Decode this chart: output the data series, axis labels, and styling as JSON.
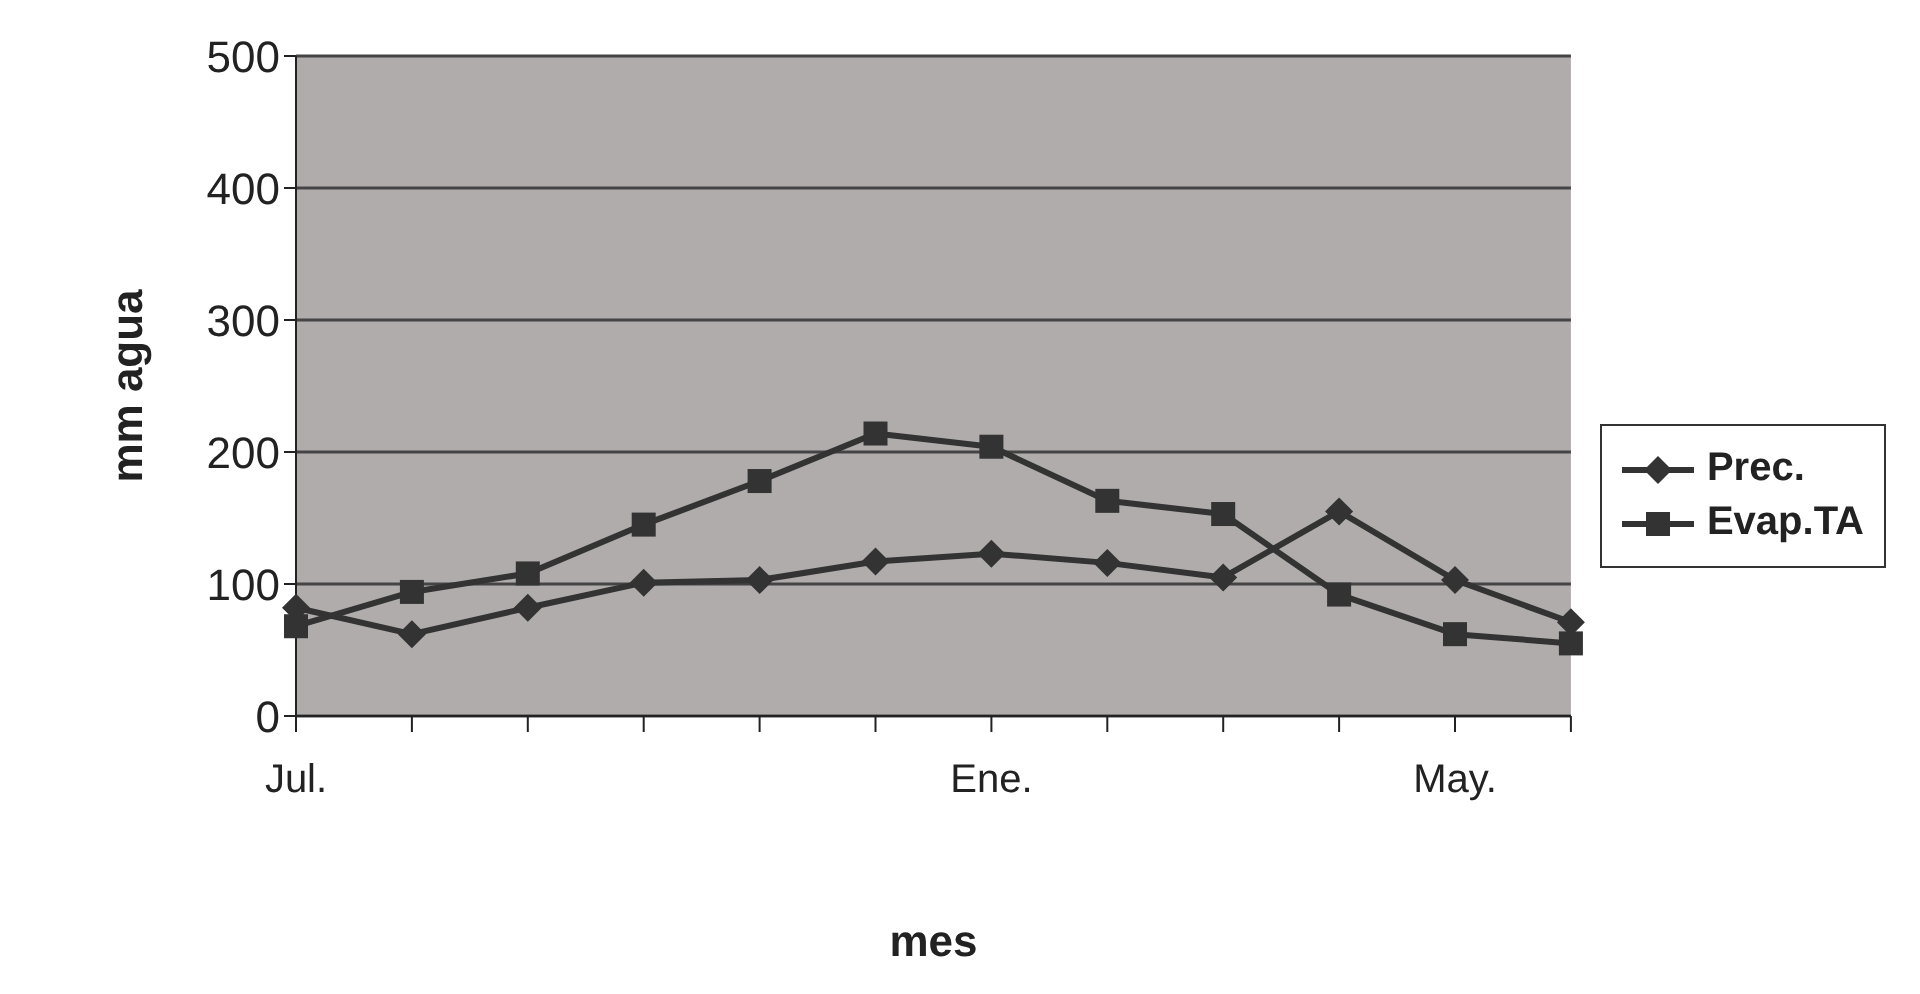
{
  "chart_data": {
    "type": "line",
    "xlabel": "mes",
    "ylabel": "mm agua",
    "categories": [
      "Jul.",
      null,
      null,
      null,
      null,
      null,
      "Ene.",
      null,
      null,
      null,
      "May.",
      null
    ],
    "series": [
      {
        "name": "Prec.",
        "color": "#333333",
        "marker": "diamond",
        "values": [
          82,
          62,
          82,
          101,
          103,
          117,
          123,
          116,
          105,
          155,
          103,
          71
        ]
      },
      {
        "name": "Evap.TA",
        "color": "#333333",
        "marker": "square",
        "values": [
          68,
          94,
          108,
          145,
          178,
          214,
          204,
          163,
          153,
          92,
          62,
          55
        ]
      }
    ],
    "ylim": [
      0,
      500
    ],
    "yticks": [
      0,
      100,
      200,
      300,
      400,
      500
    ],
    "grid": "y",
    "legend": "right"
  }
}
